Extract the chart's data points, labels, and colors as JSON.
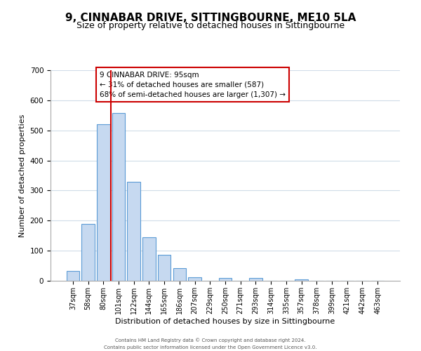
{
  "title": "9, CINNABAR DRIVE, SITTINGBOURNE, ME10 5LA",
  "subtitle": "Size of property relative to detached houses in Sittingbourne",
  "xlabel": "Distribution of detached houses by size in Sittingbourne",
  "ylabel": "Number of detached properties",
  "bar_labels": [
    "37sqm",
    "58sqm",
    "80sqm",
    "101sqm",
    "122sqm",
    "144sqm",
    "165sqm",
    "186sqm",
    "207sqm",
    "229sqm",
    "250sqm",
    "271sqm",
    "293sqm",
    "314sqm",
    "335sqm",
    "357sqm",
    "378sqm",
    "399sqm",
    "421sqm",
    "442sqm",
    "463sqm"
  ],
  "bar_values": [
    33,
    190,
    520,
    557,
    330,
    145,
    87,
    42,
    12,
    0,
    9,
    0,
    10,
    0,
    0,
    5,
    0,
    0,
    0,
    0,
    0
  ],
  "bar_color": "#c6d9f0",
  "bar_edge_color": "#5b9bd5",
  "vline_color": "#cc0000",
  "ylim": [
    0,
    700
  ],
  "yticks": [
    0,
    100,
    200,
    300,
    400,
    500,
    600,
    700
  ],
  "annotation_title": "9 CINNABAR DRIVE: 95sqm",
  "annotation_line1": "← 31% of detached houses are smaller (587)",
  "annotation_line2": "68% of semi-detached houses are larger (1,307) →",
  "annotation_box_color": "#ffffff",
  "annotation_box_edge": "#cc0000",
  "footer_line1": "Contains HM Land Registry data © Crown copyright and database right 2024.",
  "footer_line2": "Contains public sector information licensed under the Open Government Licence v3.0.",
  "grid_color": "#d0dce8",
  "title_fontsize": 11,
  "subtitle_fontsize": 9,
  "tick_fontsize": 7,
  "ylabel_fontsize": 8,
  "xlabel_fontsize": 8,
  "footer_fontsize": 5
}
